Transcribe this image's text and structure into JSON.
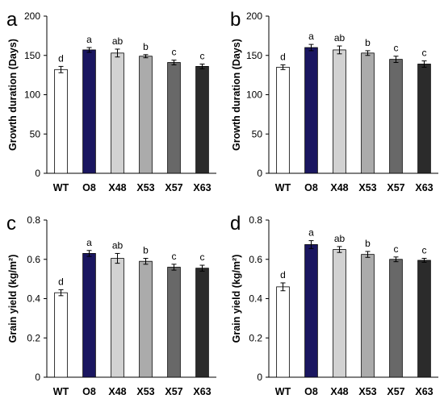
{
  "chart_data": [
    {
      "type": "bar",
      "panel_label": "a",
      "ylabel": "Growth duration (Days)",
      "ylim": [
        0,
        200
      ],
      "yticks": [
        0,
        50,
        100,
        150,
        200
      ],
      "categories": [
        "WT",
        "O8",
        "X48",
        "X53",
        "X57",
        "X63"
      ],
      "values": [
        132,
        157,
        153,
        149,
        141,
        136
      ],
      "errors": [
        4,
        3,
        5,
        2,
        3,
        3
      ],
      "significance": [
        "d",
        "a",
        "ab",
        "b",
        "c",
        "c"
      ],
      "colors": [
        "#ffffff",
        "#1a1660",
        "#d2d2d2",
        "#ababab",
        "#686868",
        "#2b2b2b"
      ]
    },
    {
      "type": "bar",
      "panel_label": "b",
      "ylabel": "Growth duration (Days)",
      "ylim": [
        0,
        200
      ],
      "yticks": [
        0,
        50,
        100,
        150,
        200
      ],
      "categories": [
        "WT",
        "O8",
        "X48",
        "X53",
        "X57",
        "X63"
      ],
      "values": [
        135,
        160,
        157,
        153,
        145,
        139
      ],
      "errors": [
        3,
        4,
        5,
        3,
        4,
        4
      ],
      "significance": [
        "d",
        "a",
        "ab",
        "b",
        "c",
        "c"
      ],
      "colors": [
        "#ffffff",
        "#1a1660",
        "#d2d2d2",
        "#ababab",
        "#686868",
        "#2b2b2b"
      ]
    },
    {
      "type": "bar",
      "panel_label": "c",
      "ylabel": "Grain yield (kg/m²)",
      "ylim": [
        0,
        0.8
      ],
      "yticks": [
        0,
        0.2,
        0.4,
        0.6,
        0.8
      ],
      "categories": [
        "WT",
        "O8",
        "X48",
        "X53",
        "X57",
        "X63"
      ],
      "values": [
        0.43,
        0.63,
        0.605,
        0.59,
        0.56,
        0.555
      ],
      "errors": [
        0.015,
        0.015,
        0.025,
        0.015,
        0.015,
        0.015
      ],
      "significance": [
        "d",
        "a",
        "ab",
        "b",
        "c",
        "c"
      ],
      "colors": [
        "#ffffff",
        "#1a1660",
        "#d2d2d2",
        "#ababab",
        "#686868",
        "#2b2b2b"
      ]
    },
    {
      "type": "bar",
      "panel_label": "d",
      "ylabel": "Grain yield (kg/m²)",
      "ylim": [
        0,
        0.8
      ],
      "yticks": [
        0,
        0.2,
        0.4,
        0.6,
        0.8
      ],
      "categories": [
        "WT",
        "O8",
        "X48",
        "X53",
        "X57",
        "X63"
      ],
      "values": [
        0.46,
        0.675,
        0.65,
        0.625,
        0.6,
        0.595
      ],
      "errors": [
        0.02,
        0.02,
        0.015,
        0.015,
        0.012,
        0.01
      ],
      "significance": [
        "d",
        "a",
        "ab",
        "b",
        "c",
        "c"
      ],
      "colors": [
        "#ffffff",
        "#1a1660",
        "#d2d2d2",
        "#ababab",
        "#686868",
        "#2b2b2b"
      ]
    }
  ]
}
